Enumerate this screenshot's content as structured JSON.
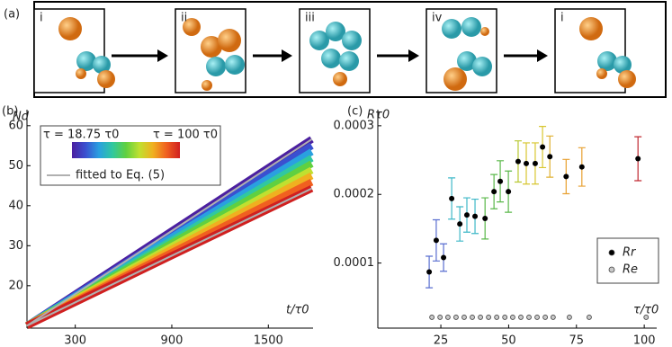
{
  "panel_a": {
    "label": "(a)",
    "steps": [
      "i",
      "ii",
      "iii",
      "iv",
      "i"
    ]
  },
  "chart_data": [
    {
      "type": "line",
      "panel": "(b)",
      "ylabel": "Nd",
      "xlabel": "t/τ0",
      "x": [
        0,
        900,
        1770
      ],
      "series": [
        {
          "color": "#4b1fa0",
          "values": [
            10,
            33.7,
            56.6
          ]
        },
        {
          "color": "#3a50d0",
          "values": [
            10,
            32.9,
            55.0
          ]
        },
        {
          "color": "#2aa0e0",
          "values": [
            10,
            32.1,
            53.5
          ]
        },
        {
          "color": "#30c8a0",
          "values": [
            10,
            31.3,
            51.9
          ]
        },
        {
          "color": "#60d040",
          "values": [
            10,
            30.6,
            50.5
          ]
        },
        {
          "color": "#c0e030",
          "values": [
            10,
            29.8,
            48.9
          ]
        },
        {
          "color": "#f0b020",
          "values": [
            10,
            29.1,
            47.5
          ]
        },
        {
          "color": "#f06020",
          "values": [
            10,
            28.3,
            45.9
          ]
        },
        {
          "color": "#d02020",
          "values": [
            10,
            27.5,
            44.3
          ]
        },
        {
          "name": "fitted to Eq. (5)",
          "color": "#b0b0b0",
          "values": [
            10,
            33.7,
            56.6
          ]
        },
        {
          "color": "#b0b0b0",
          "values": [
            10,
            27.5,
            44.3
          ]
        }
      ],
      "colorbar": {
        "min_label": "τ = 18.75 τ0",
        "max_label": "τ = 100 τ0",
        "colors": [
          "#4b1fa0",
          "#3a50d0",
          "#2aa0e0",
          "#30c8a0",
          "#60d040",
          "#c0e030",
          "#f0b020",
          "#f06020",
          "#d02020"
        ]
      },
      "xlim": [
        0,
        1778
      ],
      "ylim": [
        9.4,
        64
      ],
      "xticks": [
        300,
        900,
        1500
      ],
      "yticks": [
        20,
        30,
        40,
        50,
        60
      ]
    },
    {
      "type": "scatter",
      "panel": "(c)",
      "ylabel": "Rτ0",
      "xlabel": "τ/τ0",
      "series": [
        {
          "name": "Rr",
          "color": "#000000",
          "x": [
            20.7,
            23.3,
            26,
            29,
            32,
            34.6,
            37.6,
            41.3,
            44.6,
            46.9,
            49.9,
            53.5,
            56.5,
            59.8,
            62.5,
            65.2,
            71.2,
            77,
            97.7
          ],
          "values": [
            8.7e-05,
            0.000133,
            0.000108,
            0.000194,
            0.000157,
            0.00017,
            0.000168,
            0.000165,
            0.000204,
            0.000219,
            0.000204,
            0.000248,
            0.000245,
            0.000245,
            0.000269,
            0.000255,
            0.000226,
            0.00024,
            0.000252
          ],
          "errors": [
            2.3e-05,
            3e-05,
            2e-05,
            3e-05,
            2.5e-05,
            2.5e-05,
            2.5e-05,
            3e-05,
            2.5e-05,
            3e-05,
            3e-05,
            3e-05,
            3e-05,
            3e-05,
            3e-05,
            3e-05,
            2.5e-05,
            2.8e-05,
            3.2e-05
          ],
          "error_colors": [
            "#5a6fd0",
            "#5a6fd0",
            "#5a6fd0",
            "#3fb8c8",
            "#3fb8c8",
            "#3fb8c8",
            "#3fb8c8",
            "#5ab84a",
            "#5ab84a",
            "#5ab84a",
            "#5ab84a",
            "#b8c830",
            "#d8c630",
            "#d8c630",
            "#d8c630",
            "#e0b030",
            "#e8a030",
            "#e8a030",
            "#c02830"
          ]
        },
        {
          "name": "Re",
          "color": "#c8c8c8",
          "x": [
            21.7,
            24.7,
            27.6,
            30.6,
            33.6,
            36.6,
            39.6,
            42.6,
            45.6,
            48.6,
            51.5,
            54.5,
            57.5,
            60.5,
            63.5,
            66.4,
            72.4,
            79.7,
            100.7
          ],
          "values": [
            2.1e-05,
            2.1e-05,
            2.1e-05,
            2.1e-05,
            2.1e-05,
            2.1e-05,
            2.1e-05,
            2.1e-05,
            2.1e-05,
            2.1e-05,
            2.1e-05,
            2.1e-05,
            2.1e-05,
            2.1e-05,
            2.1e-05,
            2.1e-05,
            2.1e-05,
            2.1e-05,
            2.1e-05
          ]
        }
      ],
      "xlim": [
        1.76,
        104.6
      ],
      "ylim": [
        5.2e-06,
        0.0003234
      ],
      "xticks": [
        25,
        50,
        75,
        100
      ],
      "yticks": [
        0.0001,
        0.0002,
        0.0003
      ]
    }
  ]
}
